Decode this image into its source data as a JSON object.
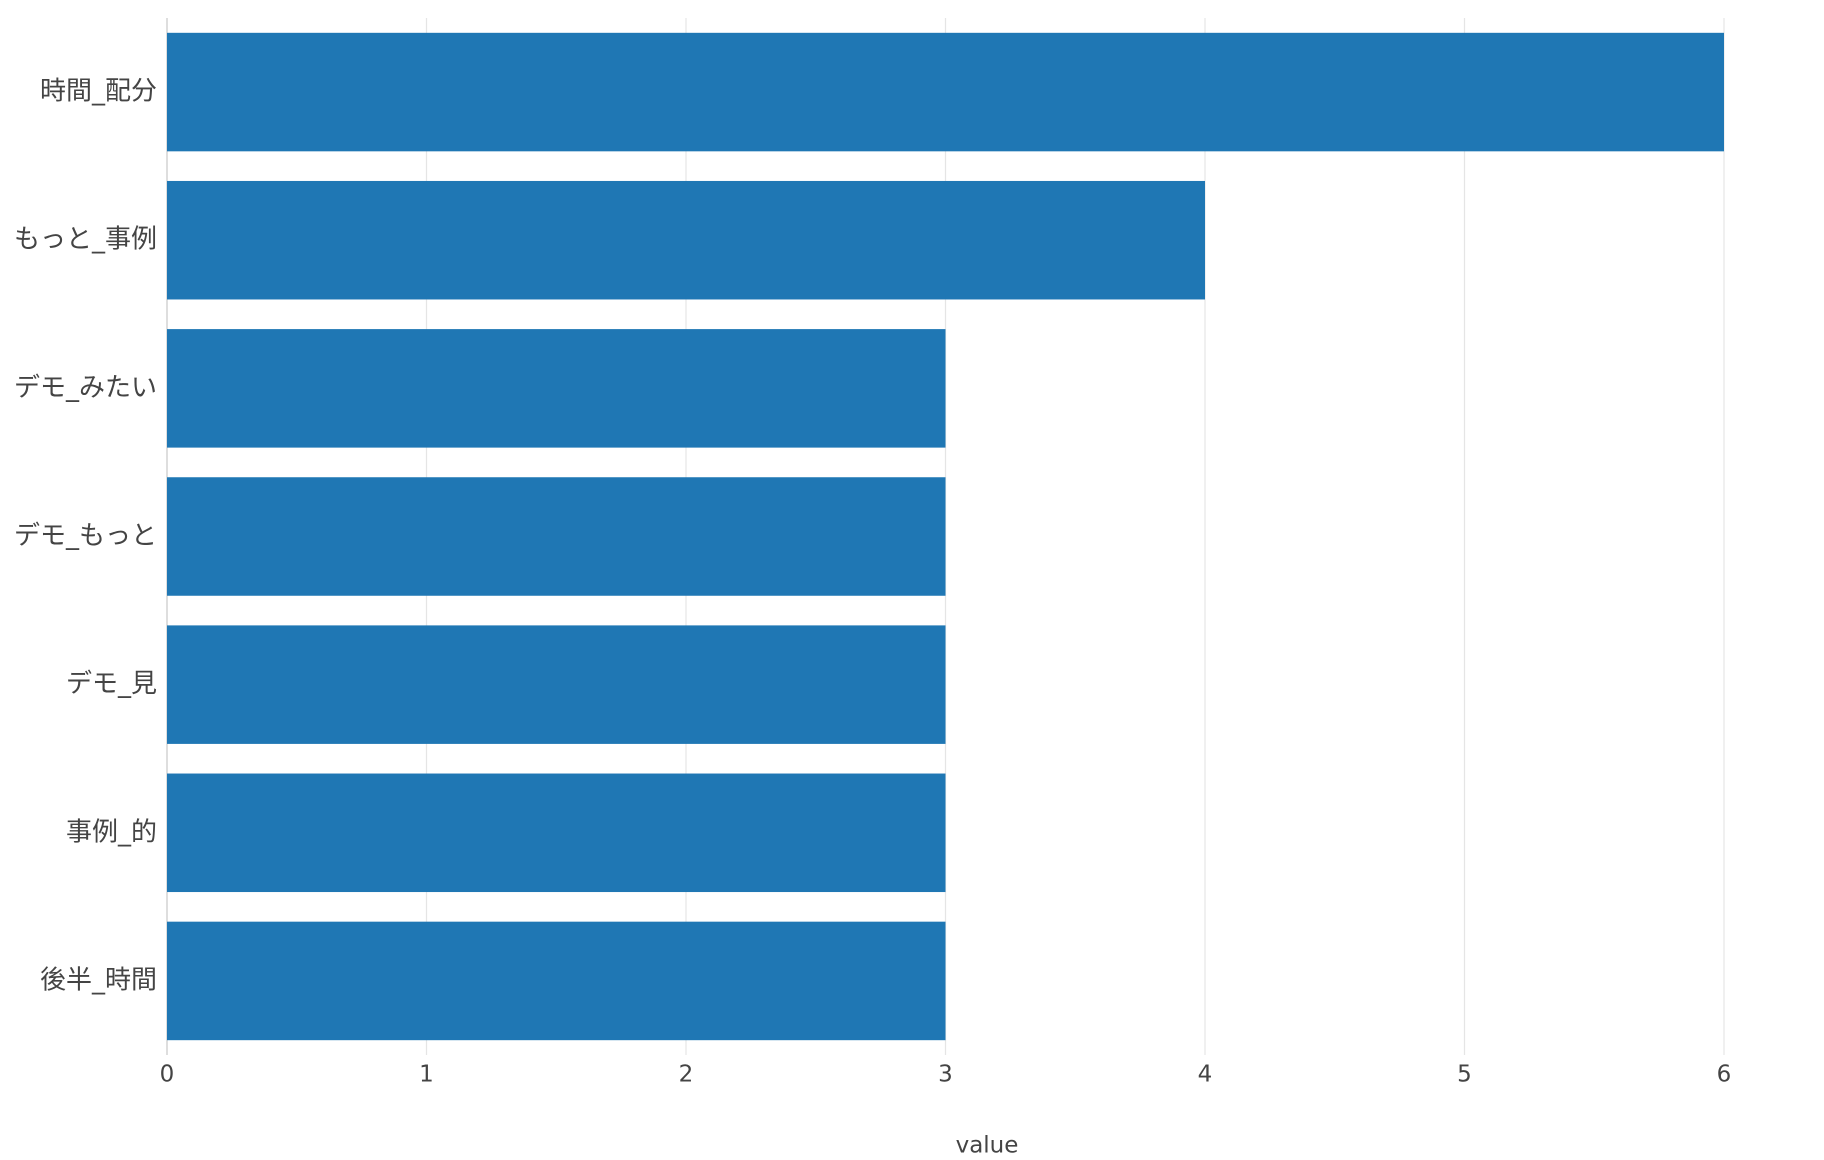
{
  "chart_data": {
    "type": "bar",
    "orientation": "horizontal",
    "categories": [
      "時間_配分",
      "もっと_事例",
      "デモ_みたい",
      "デモ_もっと",
      "デモ_見",
      "事例_的",
      "後半_時間"
    ],
    "values": [
      6,
      4,
      3,
      3,
      3,
      3,
      3
    ],
    "color": "#1f77b4",
    "xlabel": "value",
    "xlim": [
      0,
      6
    ],
    "xticks": [
      0,
      1,
      2,
      3,
      4,
      5,
      6
    ],
    "grid": true
  }
}
